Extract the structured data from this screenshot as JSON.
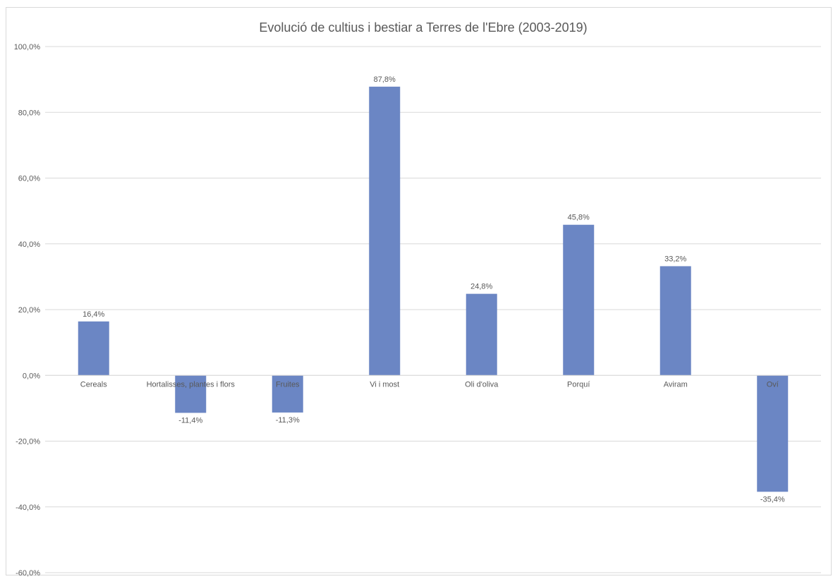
{
  "chart_data": {
    "type": "bar",
    "title": "Evolució de cultius i bestiar a Terres de l'Ebre (2003-2019)",
    "xlabel": "",
    "ylabel": "",
    "categories": [
      "Cereals",
      "Hortalisses, plantes i flors",
      "Fruites",
      "Vi i most",
      "Oli d'oliva",
      "Porquí",
      "Aviram",
      "Oví"
    ],
    "values": [
      16.4,
      -11.4,
      -11.3,
      87.8,
      24.8,
      45.8,
      33.2,
      -35.4
    ],
    "value_labels": [
      "16,4%",
      "-11,4%",
      "-11,3%",
      "87,8%",
      "24,8%",
      "45,8%",
      "33,2%",
      "-35,4%"
    ],
    "ylim": [
      -60,
      100
    ],
    "y_ticks": [
      100,
      80,
      60,
      40,
      20,
      0,
      -20,
      -40,
      -60
    ],
    "y_tick_labels": [
      "100,0%",
      "80,0%",
      "60,0%",
      "40,0%",
      "20,0%",
      "0,0%",
      "-20,0%",
      "-40,0%",
      "-60,0%"
    ],
    "grid": true,
    "legend": "none",
    "colors": {
      "bar": "#6b86c4",
      "grid": "#d9d9d9",
      "text": "#595959"
    }
  }
}
